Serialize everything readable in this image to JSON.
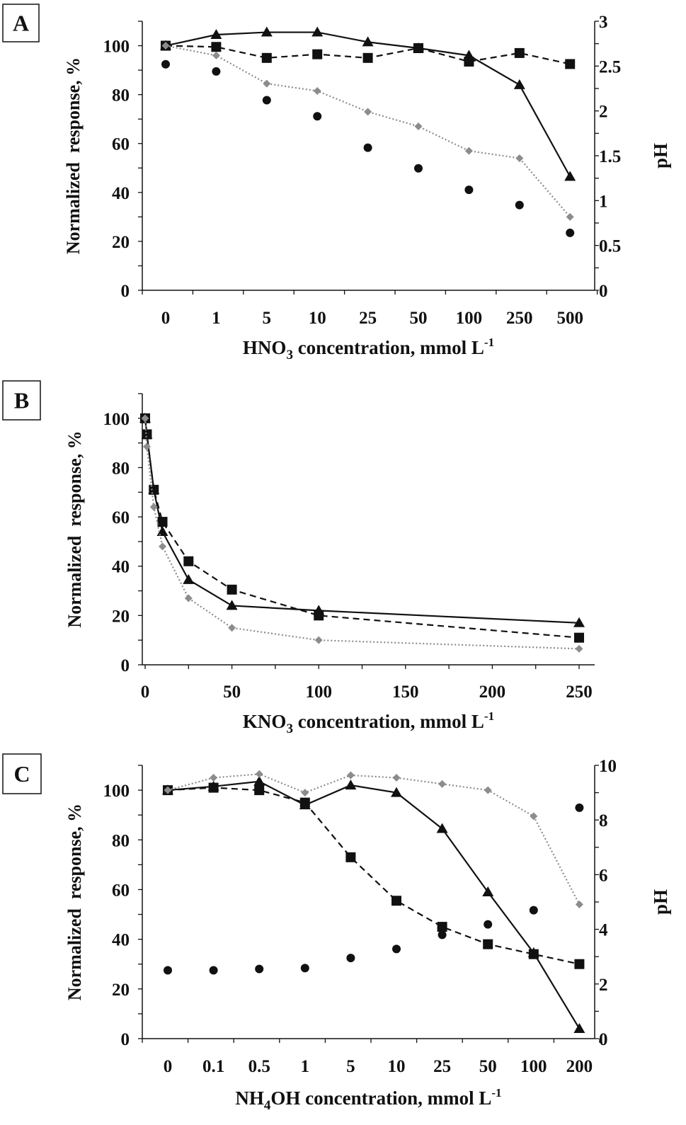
{
  "chart_data": [
    {
      "panel_label": "A",
      "type": "line",
      "categories": [
        "0",
        "1",
        "5",
        "10",
        "25",
        "50",
        "100",
        "250",
        "500"
      ],
      "xlabel": {
        "main": "HNO",
        "sub": "3",
        "rest": " concentration, mmol L",
        "sup": "-1"
      },
      "ylabel": "Normalized  response, %",
      "y2label": "pH",
      "ylim": [
        0,
        110
      ],
      "yticks": [
        0,
        20,
        40,
        60,
        80,
        100
      ],
      "y2lim": [
        0,
        3
      ],
      "y2ticks": [
        "0",
        "0.5",
        "1",
        "1.5",
        "2",
        "2.5",
        "3"
      ],
      "series": [
        {
          "marker": "triangle",
          "line": "solid",
          "color": "#111111",
          "values": [
            100,
            104.5,
            105.5,
            105.5,
            101.5,
            99,
            96,
            84,
            46.5
          ]
        },
        {
          "marker": "square",
          "line": "dashed",
          "color": "#111111",
          "values": [
            100,
            99.5,
            95,
            96.5,
            95,
            99,
            93.5,
            97,
            92.5
          ]
        },
        {
          "marker": "diamond",
          "line": "dotted",
          "color": "#8c8c8c",
          "values": [
            100,
            96,
            84.5,
            81.5,
            73,
            67,
            57,
            54,
            30
          ]
        },
        {
          "marker": "circle",
          "line": "none",
          "color": "#111111",
          "axis": "y2",
          "values": [
            2.52,
            2.44,
            2.12,
            1.94,
            1.59,
            1.36,
            1.12,
            0.95,
            0.64
          ]
        }
      ]
    },
    {
      "panel_label": "B",
      "type": "line",
      "xlabel": {
        "main": "KNO",
        "sub": "3",
        "rest": " concentration, mmol L",
        "sup": "-1"
      },
      "ylabel": "Normalized  response, %",
      "xlim": [
        0,
        250
      ],
      "xticks": [
        0,
        50,
        100,
        150,
        200,
        250
      ],
      "ylim": [
        0,
        110
      ],
      "yticks": [
        0,
        20,
        40,
        60,
        80,
        100
      ],
      "series": [
        {
          "marker": "triangle",
          "line": "solid",
          "color": "#111111",
          "x": [
            0,
            1,
            5,
            10,
            25,
            50,
            100,
            250
          ],
          "values": [
            100,
            93.5,
            71,
            54,
            34.5,
            24,
            22,
            17
          ]
        },
        {
          "marker": "square",
          "line": "dashed",
          "color": "#111111",
          "x": [
            0,
            1,
            5,
            10,
            25,
            50,
            100,
            250
          ],
          "values": [
            100,
            93.5,
            71,
            58,
            42,
            30.5,
            20,
            11
          ]
        },
        {
          "marker": "diamond",
          "line": "dotted",
          "color": "#8c8c8c",
          "x": [
            0,
            1,
            5,
            10,
            25,
            50,
            100,
            250
          ],
          "values": [
            100,
            88.5,
            64,
            48,
            27,
            15,
            10,
            6.5
          ]
        }
      ]
    },
    {
      "panel_label": "C",
      "type": "line",
      "categories": [
        "0",
        "0.1",
        "0.5",
        "1",
        "5",
        "10",
        "25",
        "50",
        "100",
        "200"
      ],
      "xlabel": {
        "main": "NH",
        "sub": "4",
        "rest": "OH concentration, mmol L",
        "sup": "-1"
      },
      "ylabel": "Normalized  response, %",
      "y2label": "pH",
      "ylim": [
        0,
        110
      ],
      "yticks": [
        0,
        20,
        40,
        60,
        80,
        100
      ],
      "y2lim": [
        0,
        10
      ],
      "y2ticks": [
        "0",
        "2",
        "4",
        "6",
        "8",
        "10"
      ],
      "series": [
        {
          "marker": "triangle",
          "line": "solid",
          "color": "#111111",
          "values": [
            100,
            101.5,
            103.5,
            94,
            102,
            99,
            84.5,
            59,
            34.5,
            4
          ]
        },
        {
          "marker": "square",
          "line": "dashed",
          "color": "#111111",
          "values": [
            100,
            101,
            100,
            95,
            73,
            55.5,
            45,
            38,
            34,
            30
          ]
        },
        {
          "marker": "diamond",
          "line": "dotted",
          "color": "#8c8c8c",
          "values": [
            100,
            105,
            106.5,
            99,
            106,
            105,
            102.5,
            100,
            89.5,
            54
          ]
        },
        {
          "marker": "circle",
          "line": "none",
          "color": "#111111",
          "axis": "y2",
          "values": [
            2.5,
            2.5,
            2.55,
            2.58,
            2.95,
            3.28,
            3.8,
            4.18,
            4.7,
            8.45
          ]
        }
      ]
    }
  ]
}
